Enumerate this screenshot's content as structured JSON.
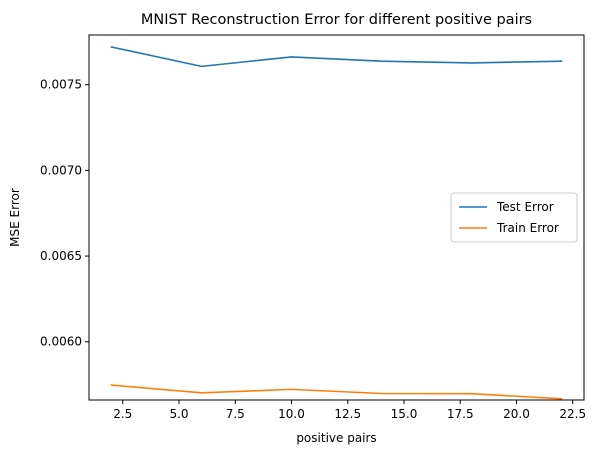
{
  "chart_data": {
    "type": "line",
    "title": "MNIST Reconstruction Error for different positive pairs",
    "xlabel": "positive pairs",
    "ylabel": "MSE Error",
    "x": [
      2,
      6,
      10,
      14,
      18,
      22
    ],
    "xlim": [
      1,
      23
    ],
    "ylim": [
      0.00566,
      0.00779
    ],
    "xticks": [
      2.5,
      5.0,
      7.5,
      10.0,
      12.5,
      15.0,
      17.5,
      20.0,
      22.5
    ],
    "xtick_labels": [
      "2.5",
      "5.0",
      "7.5",
      "10.0",
      "12.5",
      "15.0",
      "17.5",
      "20.0",
      "22.5"
    ],
    "yticks": [
      0.006,
      0.0065,
      0.007,
      0.0075
    ],
    "ytick_labels": [
      "0.0060",
      "0.0065",
      "0.0070",
      "0.0075"
    ],
    "series": [
      {
        "name": "Test Error",
        "color": "#1f77b4",
        "values": [
          0.00772,
          0.007607,
          0.007662,
          0.007637,
          0.007627,
          0.007637
        ]
      },
      {
        "name": "Train Error",
        "color": "#ff7f0e",
        "values": [
          0.005747,
          0.005702,
          0.005722,
          0.005698,
          0.005697,
          0.005667
        ]
      }
    ],
    "grid": false,
    "legend_position": "center-right"
  }
}
